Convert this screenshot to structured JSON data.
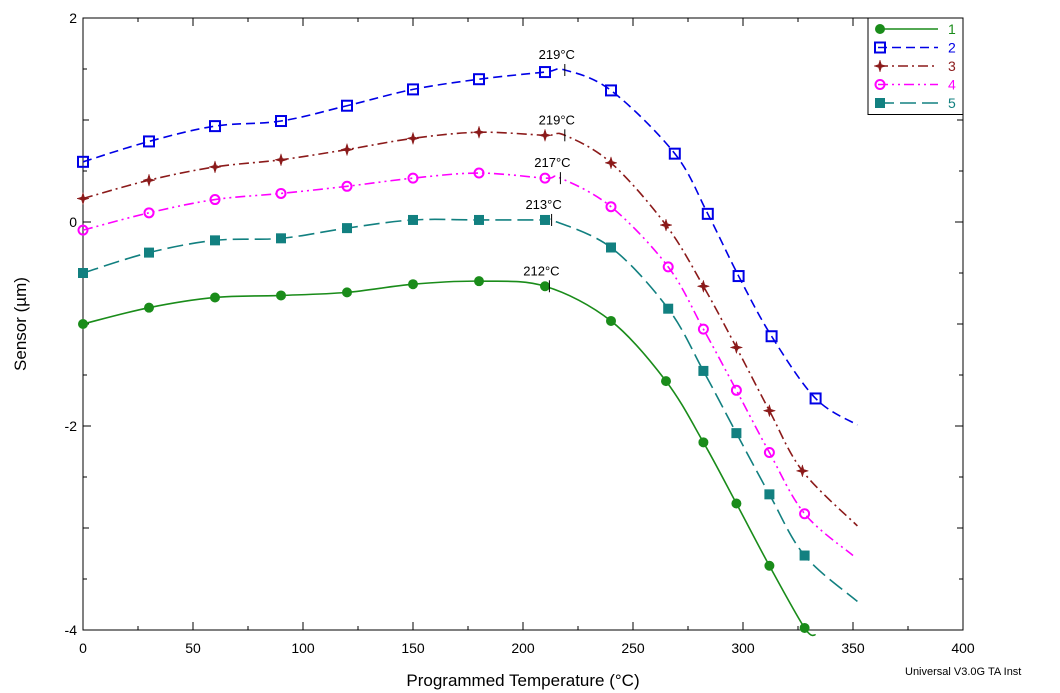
{
  "chart_data": {
    "type": "line",
    "xlabel": "Programmed Temperature (°C)",
    "ylabel": "Sensor (µm)",
    "xlim": [
      0,
      400
    ],
    "ylim": [
      -4,
      2
    ],
    "xticks": [
      0,
      50,
      100,
      150,
      200,
      250,
      300,
      350,
      400
    ],
    "yticks": [
      -4,
      -2,
      0,
      2
    ],
    "grid": false,
    "legend_position": "top-right",
    "series": [
      {
        "name": "1",
        "color": "#1a8c1a",
        "dash": "solid",
        "marker": "filled-circle",
        "x": [
          0,
          30,
          60,
          90,
          120,
          150,
          180,
          210,
          240,
          265,
          282,
          297,
          312,
          328,
          333
        ],
        "y": [
          -1.0,
          -0.84,
          -0.74,
          -0.72,
          -0.69,
          -0.61,
          -0.58,
          -0.63,
          -0.97,
          -1.56,
          -2.16,
          -2.76,
          -3.37,
          -3.98,
          -4.05
        ],
        "markers_x": [
          0,
          30,
          60,
          90,
          120,
          150,
          180,
          210,
          240,
          265,
          282,
          297,
          312,
          328
        ]
      },
      {
        "name": "2",
        "color": "#0000e6",
        "dash": "dashed",
        "marker": "open-square",
        "x": [
          0,
          30,
          60,
          90,
          120,
          150,
          180,
          210,
          219,
          240,
          269,
          284,
          298,
          313,
          333,
          352
        ],
        "y": [
          0.59,
          0.79,
          0.94,
          0.99,
          1.14,
          1.3,
          1.4,
          1.47,
          1.49,
          1.29,
          0.67,
          0.08,
          -0.53,
          -1.12,
          -1.73,
          -1.99
        ],
        "markers_x": [
          0,
          30,
          60,
          90,
          120,
          150,
          180,
          210,
          240,
          269,
          284,
          298,
          313,
          333
        ]
      },
      {
        "name": "3",
        "color": "#8b1a1a",
        "dash": "dash-dot",
        "marker": "star",
        "x": [
          0,
          30,
          60,
          90,
          120,
          150,
          180,
          210,
          219,
          240,
          265,
          282,
          297,
          312,
          327,
          352
        ],
        "y": [
          0.23,
          0.41,
          0.54,
          0.61,
          0.71,
          0.82,
          0.88,
          0.85,
          0.85,
          0.58,
          -0.03,
          -0.63,
          -1.23,
          -1.85,
          -2.44,
          -2.98
        ],
        "markers_x": [
          0,
          30,
          60,
          90,
          120,
          150,
          180,
          210,
          240,
          265,
          282,
          297,
          312,
          327
        ]
      },
      {
        "name": "4",
        "color": "#ff00ff",
        "dash": "dash-dot-dot",
        "marker": "open-circle",
        "x": [
          0,
          30,
          60,
          90,
          120,
          150,
          180,
          210,
          217,
          240,
          266,
          282,
          297,
          312,
          328,
          350
        ],
        "y": [
          -0.08,
          0.09,
          0.22,
          0.28,
          0.35,
          0.43,
          0.48,
          0.43,
          0.43,
          0.15,
          -0.44,
          -1.05,
          -1.65,
          -2.26,
          -2.86,
          -3.27
        ],
        "markers_x": [
          0,
          30,
          60,
          90,
          120,
          150,
          180,
          210,
          240,
          266,
          282,
          297,
          312,
          328
        ]
      },
      {
        "name": "5",
        "color": "#128080",
        "dash": "long-dash",
        "marker": "filled-square",
        "x": [
          0,
          30,
          60,
          90,
          120,
          150,
          180,
          210,
          213,
          240,
          266,
          282,
          297,
          312,
          328,
          352
        ],
        "y": [
          -0.5,
          -0.3,
          -0.18,
          -0.16,
          -0.06,
          0.02,
          0.02,
          0.02,
          0.02,
          -0.25,
          -0.85,
          -1.46,
          -2.07,
          -2.67,
          -3.27,
          -3.72
        ],
        "markers_x": [
          0,
          30,
          60,
          90,
          120,
          150,
          180,
          210,
          240,
          266,
          282,
          297,
          312,
          328
        ]
      }
    ],
    "annotations": [
      {
        "text": "219°C",
        "x": 219,
        "y": 1.49
      },
      {
        "text": "219°C",
        "x": 219,
        "y": 0.85
      },
      {
        "text": "217°C",
        "x": 217,
        "y": 0.43
      },
      {
        "text": "213°C",
        "x": 213,
        "y": 0.02
      },
      {
        "text": "212°C",
        "x": 212,
        "y": -0.63
      }
    ]
  },
  "footer": {
    "text": "Universal V3.0G TA Inst"
  }
}
